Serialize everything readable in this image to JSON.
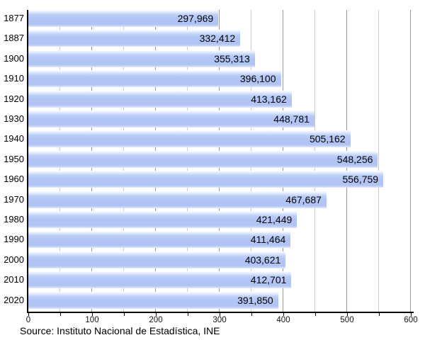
{
  "chart_data": {
    "type": "bar",
    "orientation": "horizontal",
    "title": "",
    "xlabel": "",
    "ylabel": "",
    "categories": [
      "1877",
      "1887",
      "1900",
      "1910",
      "1920",
      "1930",
      "1940",
      "1950",
      "1960",
      "1970",
      "1980",
      "1990",
      "2000",
      "2010",
      "2020"
    ],
    "values": [
      297969,
      332412,
      355313,
      396100,
      413162,
      448781,
      505162,
      548256,
      556759,
      467687,
      421449,
      411464,
      403621,
      412701,
      391850
    ],
    "value_labels": [
      "297,969",
      "332,412",
      "355,313",
      "396,100",
      "413,162",
      "448,781",
      "505,162",
      "548,256",
      "556,759",
      "467,687",
      "421,449",
      "411,464",
      "403,621",
      "412,701",
      "391,850"
    ],
    "x_ticks": [
      0,
      100,
      200,
      300,
      400,
      500,
      600
    ],
    "x_minor_tick_step": 50,
    "xlim": [
      0,
      600
    ],
    "grid": "vertical",
    "legend": "none"
  },
  "footer": {
    "source": "Source: Instituto Nacional de Estadística, INE"
  },
  "colors": {
    "bar_fill": "#b2c5f4",
    "bar_highlight": "#ffffff",
    "axis": "#000000",
    "grid_major": "#999999",
    "grid_minor": "#cccccc",
    "text": "#000000",
    "background": "#ffffff"
  }
}
